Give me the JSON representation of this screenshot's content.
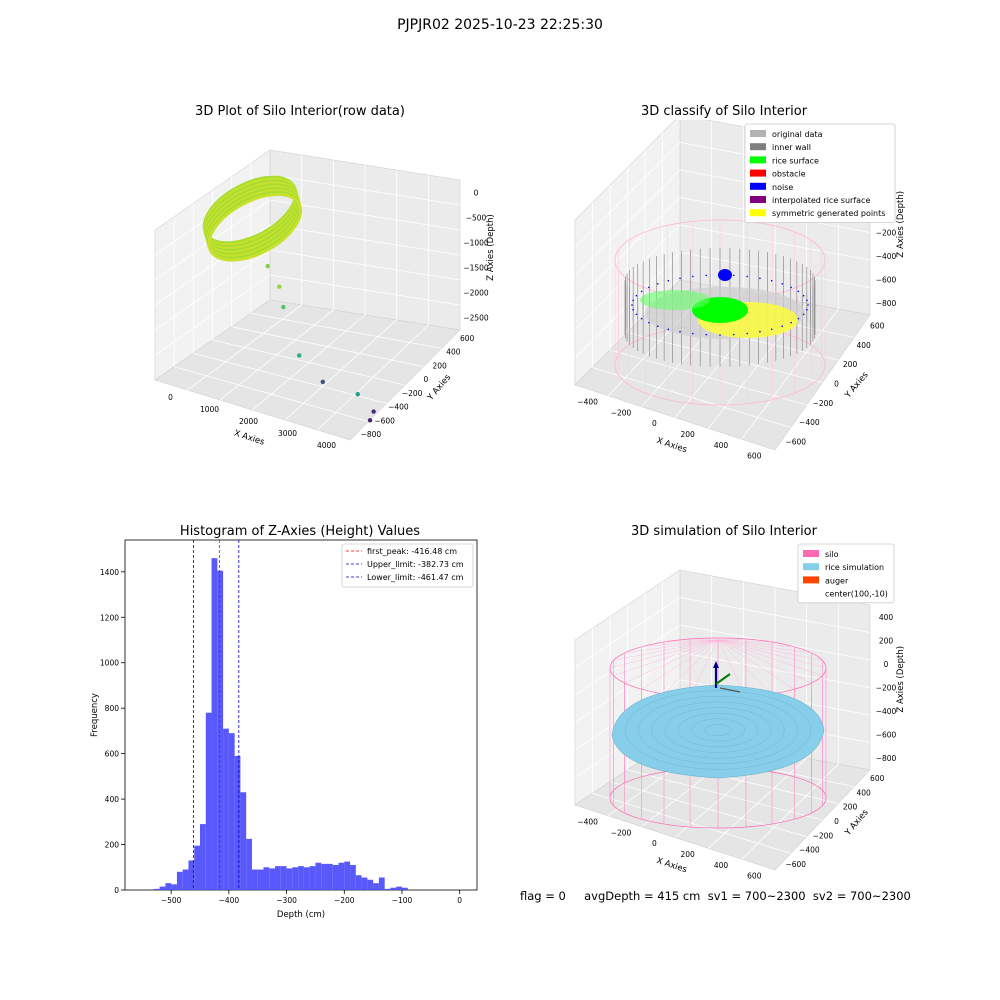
{
  "figure": {
    "suptitle": "PJPJR02 2025-10-23 22:25:30",
    "footer": "flag = 0     avgDepth = 415 cm  sv1 = 700~2300  sv2 = 700~2300"
  },
  "chart_data": [
    {
      "type": "scatter",
      "projection": "3d",
      "title": "3D Plot of Silo Interior(row data)",
      "xlabel": "X Axies",
      "ylabel": "Y Axies",
      "zlabel": "Z Axies (Depth)",
      "x_ticks": [
        "0",
        "1000",
        "2000",
        "3000",
        "4000"
      ],
      "y_ticks": [
        "600",
        "400",
        "200",
        "0",
        "−200",
        "−400",
        "−600",
        "−800"
      ],
      "z_ticks": [
        "0",
        "−500",
        "−1000",
        "−1500",
        "−2000",
        "−2500"
      ],
      "colormap": "viridis",
      "series": [
        {
          "points": [
            {
              "x": 0,
              "y": 0,
              "z": -400,
              "color": "#b5de2b"
            },
            {
              "x": 500,
              "y": 0,
              "z": -800,
              "color": "#7ad151"
            },
            {
              "x": 700,
              "y": 100,
              "z": -1200,
              "color": "#8fd744"
            },
            {
              "x": 900,
              "y": 0,
              "z": -1500,
              "color": "#52c569"
            },
            {
              "x": 1500,
              "y": -200,
              "z": -2200,
              "color": "#2ab07f"
            },
            {
              "x": 2200,
              "y": -300,
              "z": -2500,
              "color": "#3b528b"
            },
            {
              "x": 3000,
              "y": -200,
              "z": -2600,
              "color": "#1f9e89"
            },
            {
              "x": 3600,
              "y": -400,
              "z": -2700,
              "color": "#472c7a"
            },
            {
              "x": 3700,
              "y": -600,
              "z": -2750,
              "color": "#482173"
            }
          ]
        }
      ],
      "grid": true
    },
    {
      "type": "scatter",
      "projection": "3d",
      "title": "3D classify of Silo Interior",
      "xlabel": "X Axies",
      "ylabel": "Y Axies",
      "zlabel": "Z Axies (Depth)",
      "x_ticks": [
        "−400",
        "−200",
        "0",
        "200",
        "400",
        "600"
      ],
      "y_ticks": [
        "600",
        "400",
        "200",
        "0",
        "−200",
        "−400",
        "−600"
      ],
      "z_ticks": [
        "400",
        "200",
        "0",
        "−200",
        "−400",
        "−600",
        "−800"
      ],
      "legend": [
        {
          "label": "original data",
          "color": "#b3b3b3"
        },
        {
          "label": "inner wall",
          "color": "#808080"
        },
        {
          "label": "rice surface",
          "color": "#00ff00"
        },
        {
          "label": "obstacle",
          "color": "#ff0000"
        },
        {
          "label": "noise",
          "color": "#0000ff"
        },
        {
          "label": "interpolated rice surface",
          "color": "#800080"
        },
        {
          "label": "symmetric generated points",
          "color": "#ffff00"
        }
      ],
      "legend_position": "upper right",
      "grid": true
    },
    {
      "type": "histogram",
      "title": "Histogram of Z-Axies (Height) Values",
      "xlabel": "Depth (cm)",
      "ylabel": "Frequency",
      "x_ticks": [
        -500,
        -400,
        -300,
        -200,
        -100,
        0
      ],
      "y_ticks": [
        0,
        200,
        400,
        600,
        800,
        1000,
        1200,
        1400
      ],
      "xlim": [
        -580,
        30
      ],
      "ylim": [
        0,
        1540
      ],
      "bin_width": 10,
      "bar_color": "#4f4ffb",
      "bins": [
        {
          "start": -530,
          "count": 5
        },
        {
          "start": -520,
          "count": 15
        },
        {
          "start": -510,
          "count": 30
        },
        {
          "start": -500,
          "count": 25
        },
        {
          "start": -490,
          "count": 80
        },
        {
          "start": -480,
          "count": 90
        },
        {
          "start": -470,
          "count": 130
        },
        {
          "start": -460,
          "count": 195
        },
        {
          "start": -450,
          "count": 290
        },
        {
          "start": -440,
          "count": 780
        },
        {
          "start": -430,
          "count": 1460
        },
        {
          "start": -420,
          "count": 1405
        },
        {
          "start": -410,
          "count": 710
        },
        {
          "start": -400,
          "count": 690
        },
        {
          "start": -390,
          "count": 590
        },
        {
          "start": -380,
          "count": 430
        },
        {
          "start": -370,
          "count": 225
        },
        {
          "start": -360,
          "count": 90
        },
        {
          "start": -350,
          "count": 90
        },
        {
          "start": -340,
          "count": 100
        },
        {
          "start": -330,
          "count": 95
        },
        {
          "start": -320,
          "count": 105
        },
        {
          "start": -310,
          "count": 105
        },
        {
          "start": -300,
          "count": 95
        },
        {
          "start": -290,
          "count": 100
        },
        {
          "start": -280,
          "count": 105
        },
        {
          "start": -270,
          "count": 100
        },
        {
          "start": -260,
          "count": 105
        },
        {
          "start": -250,
          "count": 120
        },
        {
          "start": -240,
          "count": 115
        },
        {
          "start": -230,
          "count": 115
        },
        {
          "start": -220,
          "count": 110
        },
        {
          "start": -210,
          "count": 120
        },
        {
          "start": -200,
          "count": 125
        },
        {
          "start": -190,
          "count": 110
        },
        {
          "start": -180,
          "count": 65
        },
        {
          "start": -170,
          "count": 55
        },
        {
          "start": -160,
          "count": 45
        },
        {
          "start": -150,
          "count": 30
        },
        {
          "start": -140,
          "count": 55
        },
        {
          "start": -130,
          "count": 5
        },
        {
          "start": -120,
          "count": 10
        },
        {
          "start": -110,
          "count": 15
        },
        {
          "start": -100,
          "count": 10
        }
      ],
      "vlines": [
        {
          "label": "first_peak: -416.48 cm",
          "x": -416.48,
          "color": "#ff0000"
        },
        {
          "label": "Upper_limit: -382.73 cm",
          "x": -382.73,
          "color": "#0000cc"
        },
        {
          "label": "Lower_limit: -461.47 cm",
          "x": -461.47,
          "color": "#0000cc"
        }
      ],
      "legend_position": "upper right"
    },
    {
      "type": "surface",
      "projection": "3d",
      "title": "3D simulation of Silo Interior",
      "xlabel": "X Axies",
      "ylabel": "Y Axies",
      "zlabel": "Z Axies (Depth)",
      "x_ticks": [
        "−400",
        "−200",
        "0",
        "200",
        "400",
        "600"
      ],
      "y_ticks": [
        "600",
        "400",
        "200",
        "0",
        "−200",
        "−400",
        "−600"
      ],
      "z_ticks": [
        "400",
        "200",
        "0",
        "−200",
        "−400",
        "−600",
        "−800"
      ],
      "legend": [
        {
          "label": "silo",
          "color": "#ff69b4"
        },
        {
          "label": "rice simulation",
          "color": "#87ceeb"
        },
        {
          "label": "auger",
          "color": "#ff4500"
        },
        {
          "label": "center(100,-10)",
          "color": ""
        }
      ],
      "legend_position": "upper right",
      "grid": true
    }
  ]
}
